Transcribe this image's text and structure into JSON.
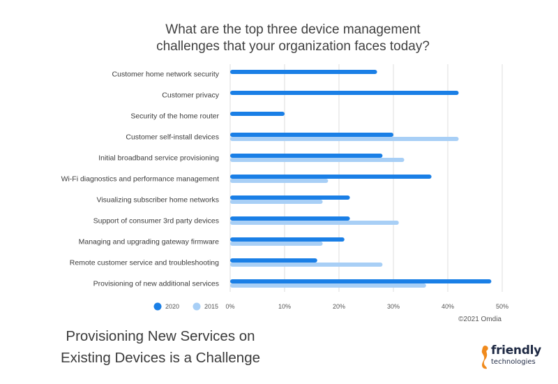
{
  "chart_data": {
    "type": "bar",
    "orientation": "horizontal",
    "title_lines": [
      "What are the top three device management",
      "challenges that your organization faces today?"
    ],
    "categories": [
      "Customer home network security",
      "Customer privacy",
      "Security of the home router",
      "Customer self-install devices",
      "Initial broadband service provisioning",
      "Wi-Fi diagnostics and performance management",
      "Visualizing subscriber home networks",
      "Support of consumer 3rd party devices",
      "Managing and upgrading gateway firmware",
      "Remote customer service and troubleshooting",
      "Provisioning of new additional services"
    ],
    "series": [
      {
        "name": "2020",
        "color": "#1a7fe6",
        "values": [
          27,
          42,
          10,
          30,
          28,
          37,
          22,
          22,
          21,
          16,
          48
        ]
      },
      {
        "name": "2015",
        "color": "#a8cff6",
        "values": [
          null,
          null,
          null,
          42,
          32,
          18,
          17,
          31,
          17,
          28,
          36
        ]
      }
    ],
    "xlim": [
      0,
      50
    ],
    "ticks": [
      "0%",
      "10%",
      "20%",
      "30%",
      "40%",
      "50%"
    ],
    "tick_values": [
      0,
      10,
      20,
      30,
      40,
      50
    ],
    "grid": true,
    "legend_position": "bottom-left",
    "credit": "©2021 Omdia"
  },
  "caption_lines": [
    "Provisioning New Services on",
    "Existing Devices is a Challenge"
  ],
  "logo": {
    "line1": "friendly",
    "line2": "technologies",
    "color": "#f08a1c"
  }
}
